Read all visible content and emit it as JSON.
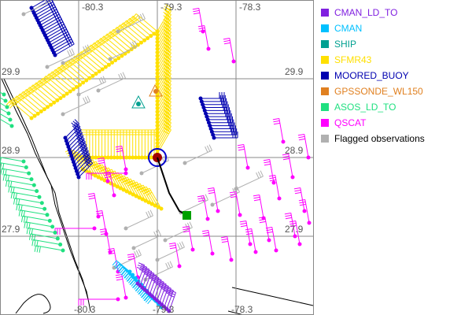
{
  "map": {
    "lon_labels": [
      "-80.3",
      "-79.3",
      "-78.3"
    ],
    "lat_labels": [
      "29.9",
      "28.9",
      "27.9"
    ]
  },
  "legend": [
    {
      "label": "CMAN_LD_TO",
      "color": "#8020e0"
    },
    {
      "label": "CMAN",
      "color": "#00c0ff"
    },
    {
      "label": "SHIP",
      "color": "#00a090"
    },
    {
      "label": "SFMR43",
      "color": "#ffe000"
    },
    {
      "label": "MOORED_BUOY",
      "color": "#0000b0"
    },
    {
      "label": "GPSSONDE_WL150",
      "color": "#e08020"
    },
    {
      "label": "ASOS_LD_TO",
      "color": "#20e080"
    },
    {
      "label": "QSCAT",
      "color": "#ff00ff"
    },
    {
      "label": "Flagged observations",
      "color": "#b0b0b0",
      "text_color": "#000000"
    }
  ]
}
